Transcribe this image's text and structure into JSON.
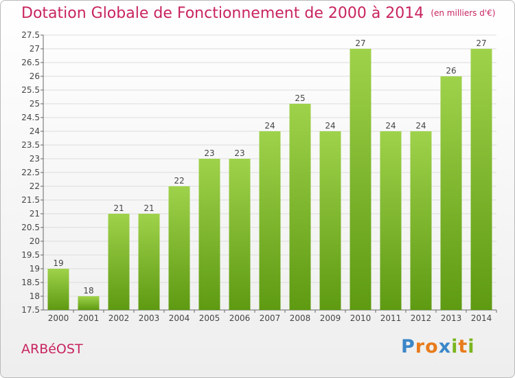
{
  "title": "Dotation Globale de Fonctionnement de 2000 à 2014",
  "unit_note": "(en milliers d'€)",
  "commune": "ARBéOST",
  "logo": {
    "letters": [
      "P",
      "r",
      "o",
      "x",
      "i",
      "t",
      "i"
    ],
    "colors": [
      "#3a86c8",
      "#e87b1c",
      "#e87b1c",
      "#3a86c8",
      "#7ab51d",
      "#e87b1c",
      "#7ab51d"
    ]
  },
  "chart_data": {
    "type": "bar",
    "title": "Dotation Globale de Fonctionnement de 2000 à 2014",
    "categories": [
      "2000",
      "2001",
      "2002",
      "2003",
      "2004",
      "2005",
      "2006",
      "2007",
      "2008",
      "2009",
      "2010",
      "2011",
      "2012",
      "2013",
      "2014"
    ],
    "values": [
      19,
      18,
      21,
      21,
      22,
      23,
      23,
      24,
      25,
      24,
      27,
      24,
      24,
      26,
      27
    ],
    "labels": [
      "19",
      "18",
      "21",
      "21",
      "22",
      "23",
      "23",
      "24",
      "25",
      "24",
      "27",
      "24",
      "24",
      "26",
      "27"
    ],
    "ylim": [
      17.5,
      27.5
    ],
    "yticks": [
      "17.5",
      "18",
      "18.5",
      "19",
      "19.5",
      "20",
      "20.5",
      "21",
      "21.5",
      "22",
      "22.5",
      "23",
      "23.5",
      "24",
      "24.5",
      "25",
      "25.5",
      "26",
      "26.5",
      "27",
      "27.5"
    ],
    "grid": true,
    "bar_color_top": "#9fd24b",
    "bar_color_bottom": "#5e9a12"
  }
}
